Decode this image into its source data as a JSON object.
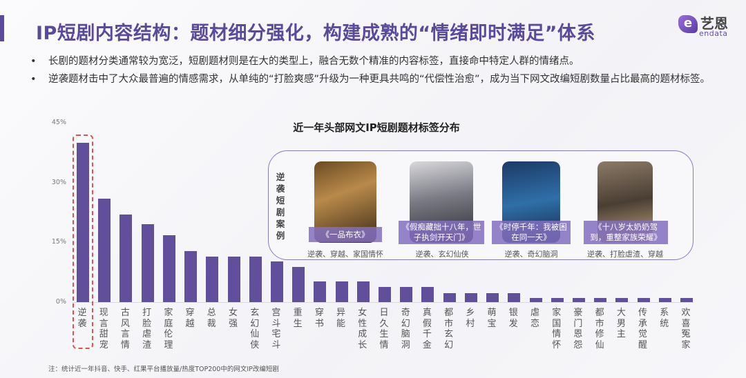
{
  "header": {
    "title": "IP短剧内容结构：题材细分强化，构建成熟的“情绪即时满足”体系",
    "logo": {
      "cn": "艺恩",
      "en": "endata",
      "mark": "e"
    }
  },
  "bullets": [
    "长剧的题材分类通常较为宽泛，短剧题材则是在大的类型上，融合无数个精准的内容标签，直接命中特定人群的情绪点。",
    "逆袭题材击中了大众最普遍的情感需求，从单纯的“打脸爽感”升级为一种更具共鸣的“代偿性治愈”，成为当下网文改编短剧数量占比最高的题材标签。"
  ],
  "chart_data": {
    "type": "bar",
    "title": "近一年头部网文IP短剧题材标签分布",
    "ylim": [
      0,
      45
    ],
    "yticks": [
      "0%",
      "15%",
      "30%",
      "45%"
    ],
    "categories": [
      "逆袭",
      "现言甜宠",
      "古风言情",
      "打脸虐渣",
      "家庭伦理",
      "穿越",
      "总裁",
      "女强",
      "玄幻仙侠",
      "宫斗宅斗",
      "重生",
      "穿书",
      "异能",
      "女性成长",
      "日久生情",
      "奇幻脑洞",
      "真假千金",
      "都市玄幻",
      "乡村",
      "萌宝",
      "银发",
      "虐恋",
      "家国情怀",
      "豪门恩怨",
      "都市修仙",
      "大男主",
      "传承觉醒",
      "系统",
      "欢喜冤家"
    ],
    "values": [
      40,
      26,
      22,
      19.5,
      16.8,
      12.8,
      11.4,
      11.4,
      11.4,
      10.2,
      8.8,
      5.2,
      5.2,
      5.2,
      3.8,
      3.8,
      3.8,
      2.3,
      2.3,
      2.3,
      2.3,
      1.1,
      1.1,
      1.1,
      1.1,
      1.1,
      1.1,
      1.1,
      1.1
    ],
    "highlight": "逆袭",
    "bar_color": "#614f9c",
    "highlight_color": "#d9534f",
    "grid": false
  },
  "inset": {
    "label": "逆袭短剧案例",
    "cases": [
      {
        "title": "《一品布衣》",
        "tags": "逆袭、穿越、家国情怀"
      },
      {
        "title": "《假痴藏拙十八年，世子执剑开天门》",
        "tags": "逆袭、玄幻仙侠"
      },
      {
        "title": "《时停千年：我被困在同一天》",
        "tags": "逆袭、奇幻脑洞"
      },
      {
        "title": "《十八岁太奶奶驾到，重整家族荣耀》",
        "tags": "逆袭、打脸虐渣、穿越"
      }
    ]
  },
  "note": "注：统计近一年抖音、快手、红果平台播放量/热度TOP200中的网文IP改编短剧"
}
